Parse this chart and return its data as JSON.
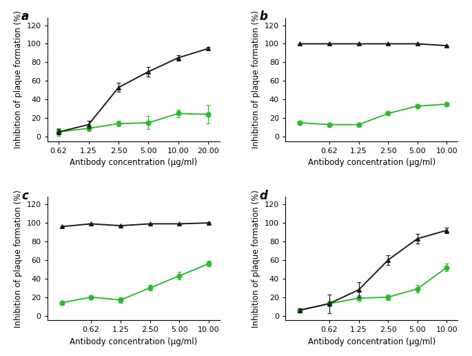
{
  "panels": [
    {
      "label": "a",
      "x_black": [
        0.62,
        1.25,
        2.5,
        5.0,
        10.0,
        20.0
      ],
      "y_black": [
        5,
        13,
        53,
        70,
        85,
        95
      ],
      "yerr_black": [
        3,
        4,
        5,
        5,
        3,
        2
      ],
      "x_green": [
        0.62,
        1.25,
        2.5,
        5.0,
        10.0,
        20.0
      ],
      "y_green": [
        5,
        9,
        14,
        15,
        25,
        24
      ],
      "yerr_green": [
        4,
        3,
        3,
        7,
        4,
        10
      ],
      "xticks": [
        0.62,
        1.25,
        2.5,
        5.0,
        10.0,
        20.0
      ],
      "xticklabels": [
        "0.62",
        "1.25",
        "2.50",
        "5.00",
        "10.00",
        "20.00"
      ],
      "xlim_lo": 0.48,
      "xlim_hi": 26.0
    },
    {
      "label": "b",
      "x_black": [
        0.31,
        0.62,
        1.25,
        2.5,
        5.0,
        10.0
      ],
      "y_black": [
        100,
        100,
        100,
        100,
        100,
        98
      ],
      "yerr_black": [
        0.5,
        0.5,
        0.5,
        0.5,
        0.5,
        0.5
      ],
      "x_green": [
        0.31,
        0.62,
        1.25,
        2.5,
        5.0,
        10.0
      ],
      "y_green": [
        15,
        13,
        13,
        25,
        33,
        35
      ],
      "yerr_green": [
        2,
        2,
        2,
        2,
        2,
        2
      ],
      "xticks": [
        0.62,
        1.25,
        2.5,
        5.0,
        10.0
      ],
      "xticklabels": [
        "0.62",
        "1.25",
        "2.50",
        "5.00",
        "10.00"
      ],
      "xlim_lo": 0.22,
      "xlim_hi": 13.0
    },
    {
      "label": "c",
      "x_black": [
        0.31,
        0.62,
        1.25,
        2.5,
        5.0,
        10.0
      ],
      "y_black": [
        96,
        99,
        97,
        99,
        99,
        100
      ],
      "yerr_black": [
        0.5,
        0.5,
        0.5,
        0.5,
        0.5,
        0.5
      ],
      "x_green": [
        0.31,
        0.62,
        1.25,
        2.5,
        5.0,
        10.0
      ],
      "y_green": [
        14,
        20,
        17,
        30,
        43,
        56
      ],
      "yerr_green": [
        2,
        2,
        3,
        3,
        4,
        3
      ],
      "xticks": [
        0.62,
        1.25,
        2.5,
        5.0,
        10.0
      ],
      "xticklabels": [
        "0.62",
        "1.25",
        "2.50",
        "5.00",
        "10.00"
      ],
      "xlim_lo": 0.22,
      "xlim_hi": 13.0
    },
    {
      "label": "d",
      "x_black": [
        0.31,
        0.62,
        1.25,
        2.5,
        5.0,
        10.0
      ],
      "y_black": [
        6,
        13,
        28,
        60,
        83,
        92
      ],
      "yerr_black": [
        2,
        10,
        8,
        5,
        5,
        3
      ],
      "x_green": [
        0.31,
        0.62,
        1.25,
        2.5,
        5.0,
        10.0
      ],
      "y_green": [
        6,
        13,
        19,
        20,
        29,
        52
      ],
      "yerr_green": [
        2,
        3,
        3,
        3,
        4,
        4
      ],
      "xticks": [
        0.62,
        1.25,
        2.5,
        5.0,
        10.0
      ],
      "xticklabels": [
        "0.62",
        "1.25",
        "2.50",
        "5.00",
        "10.00"
      ],
      "xlim_lo": 0.22,
      "xlim_hi": 13.0
    }
  ],
  "black_color": "#1a1a1a",
  "green_color": "#2db92d",
  "ylabel": "Inhibition of plaque formation (%)",
  "xlabel": "Antibody concentration (µg/ml)",
  "ylim": [
    -5,
    128
  ],
  "yticks": [
    0,
    20,
    40,
    60,
    80,
    100,
    120
  ],
  "marker_black": "^",
  "marker_green": "o",
  "marker_size": 5,
  "linewidth": 1.4,
  "label_fontsize": 12,
  "tick_fontsize": 8,
  "axis_label_fontsize": 8.5
}
